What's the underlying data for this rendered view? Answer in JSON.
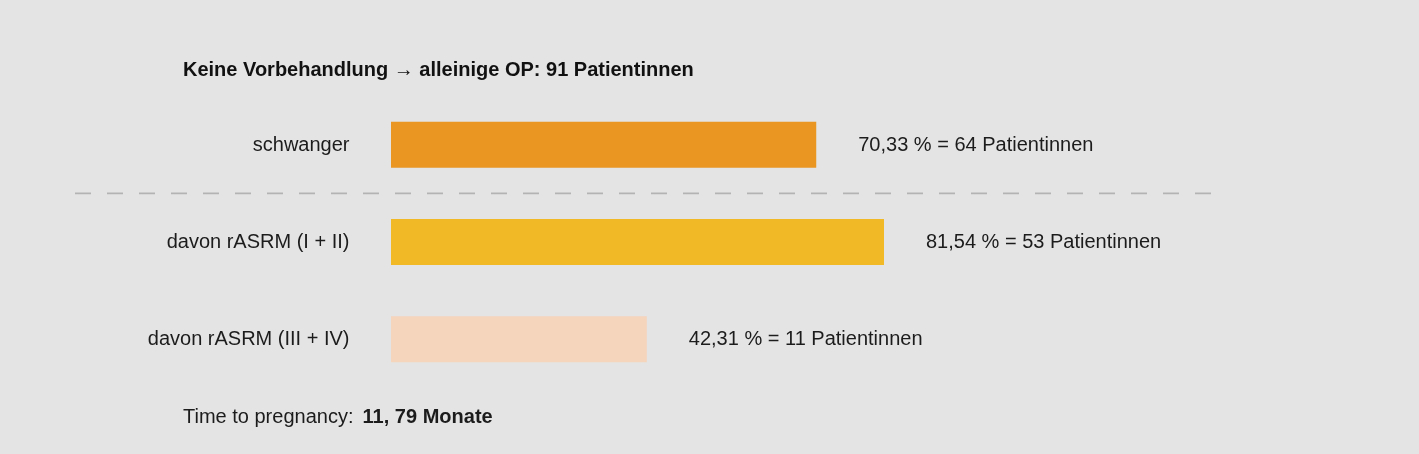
{
  "chart_data": {
    "type": "bar",
    "orientation": "horizontal",
    "title": "Keine Vorbehandlung → alleinige OP: 91 Patientinnen",
    "categories": [
      "schwanger",
      "davon rASRM (I + II)",
      "davon rASRM (III + IV)"
    ],
    "values": [
      70.33,
      81.54,
      42.31
    ],
    "colors": [
      "#e99623",
      "#f1b926",
      "#f6d5bd"
    ],
    "value_labels": [
      "70,33 % = 64 Patientinnen",
      "81,54 % = 53 Patientinnen",
      "42,31 % = 11 Patientinnen"
    ],
    "tick_labels": "y",
    "ref_lines": [
      {
        "axis": "y",
        "value": "schwanger",
        "line_style": "dashed",
        "color": "#b3b3b3"
      }
    ],
    "annotations": [
      "Time to pregnancy:",
      "11, 79 Monate"
    ]
  }
}
